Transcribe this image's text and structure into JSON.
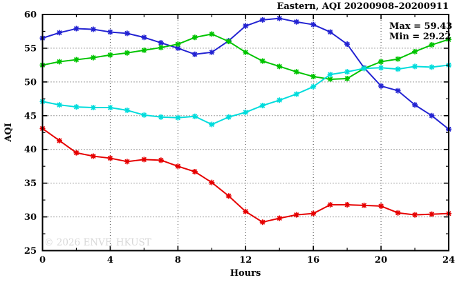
{
  "chart_data": {
    "type": "line",
    "title": "Eastern, AQI 20200908–20200911",
    "xlabel": "Hours",
    "ylabel": "AQI",
    "watermark": "© 2026 ENVF, HKUST",
    "annotations": [
      {
        "text": "Max = 59.43"
      },
      {
        "text": "Min = 29.22"
      }
    ],
    "max_value": 59.43,
    "min_value": 29.22,
    "xlim": [
      0,
      24
    ],
    "ylim": [
      25,
      60
    ],
    "x_major_ticks": [
      0,
      4,
      8,
      12,
      16,
      20,
      24
    ],
    "x_minor_step": 2,
    "y_major_ticks": [
      25,
      30,
      35,
      40,
      45,
      50,
      55,
      60
    ],
    "y_minor_step": 2.5,
    "grid": "dotted, at major ticks",
    "legend": "none",
    "marker": "star",
    "x": [
      0,
      1,
      2,
      3,
      4,
      5,
      6,
      7,
      8,
      9,
      10,
      11,
      12,
      13,
      14,
      15,
      16,
      17,
      18,
      19,
      20,
      21,
      22,
      23,
      24
    ],
    "series": [
      {
        "name": "blue",
        "color": "#2323d2",
        "values": [
          56.5,
          57.3,
          57.9,
          57.8,
          57.4,
          57.2,
          56.6,
          55.8,
          55.0,
          54.1,
          54.4,
          56.1,
          58.3,
          59.2,
          59.43,
          58.9,
          58.5,
          57.4,
          55.6,
          52.1,
          49.4,
          48.7,
          46.6,
          45.0,
          43.0
        ]
      },
      {
        "name": "green",
        "color": "#00c400",
        "values": [
          52.5,
          53.0,
          53.3,
          53.6,
          54.0,
          54.3,
          54.7,
          55.1,
          55.6,
          56.6,
          57.1,
          56.0,
          54.4,
          53.1,
          52.3,
          51.5,
          50.8,
          50.4,
          50.5,
          52.0,
          53.0,
          53.4,
          54.5,
          55.5,
          56.3
        ]
      },
      {
        "name": "cyan",
        "color": "#00dcdc",
        "values": [
          47.1,
          46.6,
          46.3,
          46.2,
          46.2,
          45.8,
          45.1,
          44.8,
          44.7,
          44.9,
          43.7,
          44.8,
          45.5,
          46.5,
          47.3,
          48.2,
          49.3,
          51.1,
          51.5,
          52.0,
          52.1,
          51.9,
          52.3,
          52.2,
          52.5
        ]
      },
      {
        "name": "red",
        "color": "#e60000",
        "values": [
          43.1,
          41.3,
          39.5,
          39.0,
          38.7,
          38.2,
          38.5,
          38.4,
          37.5,
          36.7,
          35.1,
          33.1,
          30.8,
          29.22,
          29.8,
          30.3,
          30.5,
          31.8,
          31.8,
          31.7,
          31.6,
          30.6,
          30.3,
          30.4,
          30.5
        ]
      }
    ],
    "colors": {
      "axis": "#000000",
      "grid": "#3c3c3c",
      "watermark": "#d8d8d8"
    }
  }
}
